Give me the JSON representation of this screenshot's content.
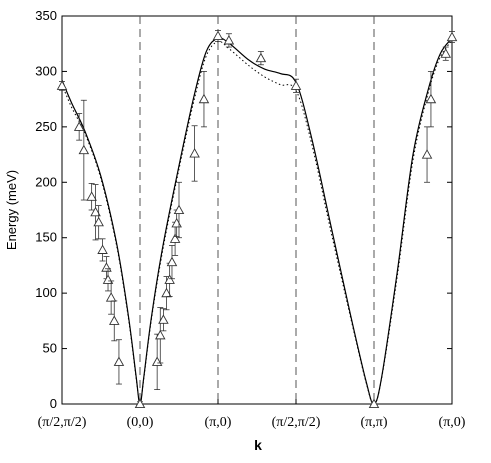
{
  "chart_data": {
    "type": "scatter",
    "title": "",
    "xlabel": "k",
    "ylabel": "Energy (meV)",
    "ylim": [
      0,
      350
    ],
    "yticks": [
      0,
      50,
      100,
      150,
      200,
      250,
      300,
      350
    ],
    "xlim": [
      0,
      5
    ],
    "x_ticks": [
      {
        "x": 0,
        "label": "(π/2,π/2)"
      },
      {
        "x": 1,
        "label": "(0,0)"
      },
      {
        "x": 2,
        "label": "(π,0)"
      },
      {
        "x": 3,
        "label": "(π/2,π/2)"
      },
      {
        "x": 4,
        "label": "(π,π)"
      },
      {
        "x": 5,
        "label": "(π,0)"
      }
    ],
    "vlines_dashed_at": [
      1,
      2,
      3,
      4
    ],
    "series": [
      {
        "kind": "solid-line",
        "points": [
          [
            0,
            292
          ],
          [
            0.12,
            272
          ],
          [
            0.3,
            245
          ],
          [
            0.5,
            205
          ],
          [
            0.7,
            145
          ],
          [
            0.85,
            80
          ],
          [
            0.95,
            25
          ],
          [
            1.0,
            0
          ],
          [
            1.05,
            25
          ],
          [
            1.15,
            80
          ],
          [
            1.3,
            145
          ],
          [
            1.5,
            215
          ],
          [
            1.7,
            280
          ],
          [
            1.85,
            318
          ],
          [
            2.0,
            330
          ],
          [
            2.15,
            325
          ],
          [
            2.4,
            310
          ],
          [
            2.6,
            302
          ],
          [
            2.8,
            298
          ],
          [
            3.0,
            290
          ],
          [
            3.2,
            240
          ],
          [
            3.45,
            160
          ],
          [
            3.7,
            80
          ],
          [
            3.9,
            20
          ],
          [
            4.0,
            0
          ],
          [
            4.1,
            25
          ],
          [
            4.3,
            120
          ],
          [
            4.5,
            225
          ],
          [
            4.7,
            285
          ],
          [
            4.85,
            316
          ],
          [
            5.0,
            330
          ]
        ]
      },
      {
        "kind": "dotted-line",
        "points": [
          [
            0,
            288
          ],
          [
            0.12,
            268
          ],
          [
            0.3,
            243
          ],
          [
            0.5,
            203
          ],
          [
            0.7,
            143
          ],
          [
            0.85,
            78
          ],
          [
            0.95,
            24
          ],
          [
            1.0,
            0
          ],
          [
            1.05,
            24
          ],
          [
            1.15,
            78
          ],
          [
            1.3,
            142
          ],
          [
            1.5,
            212
          ],
          [
            1.7,
            276
          ],
          [
            1.85,
            314
          ],
          [
            2.0,
            327
          ],
          [
            2.15,
            320
          ],
          [
            2.4,
            305
          ],
          [
            2.6,
            295
          ],
          [
            2.8,
            288
          ],
          [
            3.0,
            283
          ],
          [
            3.2,
            235
          ],
          [
            3.45,
            155
          ],
          [
            3.7,
            78
          ],
          [
            3.9,
            19
          ],
          [
            4.0,
            0
          ],
          [
            4.1,
            24
          ],
          [
            4.3,
            116
          ],
          [
            4.5,
            220
          ],
          [
            4.7,
            282
          ],
          [
            4.85,
            313
          ],
          [
            5.0,
            328
          ]
        ]
      },
      {
        "kind": "data-points",
        "marker": "triangle",
        "points": [
          {
            "x": 0.0,
            "y": 287,
            "err": 4
          },
          {
            "x": 0.22,
            "y": 250,
            "err": 12
          },
          {
            "x": 0.28,
            "y": 229,
            "err": 45
          },
          {
            "x": 0.38,
            "y": 187,
            "err": 12
          },
          {
            "x": 0.43,
            "y": 173,
            "err": 25
          },
          {
            "x": 0.47,
            "y": 164,
            "err": 15
          },
          {
            "x": 0.52,
            "y": 139,
            "err": 10
          },
          {
            "x": 0.57,
            "y": 123,
            "err": 10
          },
          {
            "x": 0.59,
            "y": 112,
            "err": 10
          },
          {
            "x": 0.63,
            "y": 96,
            "err": 15
          },
          {
            "x": 0.67,
            "y": 75,
            "err": 18
          },
          {
            "x": 0.73,
            "y": 38,
            "err": 20
          },
          {
            "x": 1.0,
            "y": 0,
            "err": 2
          },
          {
            "x": 1.22,
            "y": 38,
            "err": 25
          },
          {
            "x": 1.26,
            "y": 62,
            "err": 25
          },
          {
            "x": 1.3,
            "y": 76,
            "err": 10
          },
          {
            "x": 1.34,
            "y": 100,
            "err": 15
          },
          {
            "x": 1.38,
            "y": 112,
            "err": 15
          },
          {
            "x": 1.41,
            "y": 128,
            "err": 15
          },
          {
            "x": 1.45,
            "y": 149,
            "err": 15
          },
          {
            "x": 1.47,
            "y": 163,
            "err": 12
          },
          {
            "x": 1.5,
            "y": 175,
            "err": 25
          },
          {
            "x": 1.7,
            "y": 226,
            "err": 25
          },
          {
            "x": 1.82,
            "y": 275,
            "err": 25
          },
          {
            "x": 2.0,
            "y": 332,
            "err": 5
          },
          {
            "x": 2.14,
            "y": 328,
            "err": 6
          },
          {
            "x": 2.55,
            "y": 312,
            "err": 6
          },
          {
            "x": 3.0,
            "y": 287,
            "err": 6
          },
          {
            "x": 4.0,
            "y": 0,
            "err": 2
          },
          {
            "x": 4.68,
            "y": 225,
            "err": 25
          },
          {
            "x": 4.73,
            "y": 275,
            "err": 25
          },
          {
            "x": 4.92,
            "y": 316,
            "err": 6
          },
          {
            "x": 5.0,
            "y": 331,
            "err": 5
          }
        ]
      }
    ],
    "grid": false,
    "legend": "none"
  }
}
